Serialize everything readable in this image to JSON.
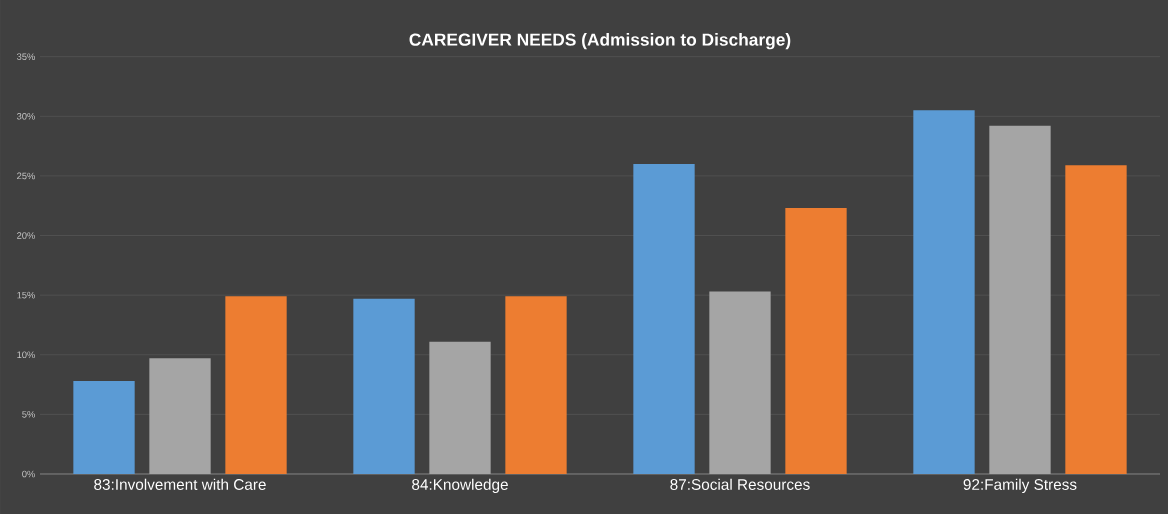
{
  "chart_data": {
    "type": "bar",
    "title": "CAREGIVER NEEDS (Admission to Discharge)",
    "categories": [
      "83:Involvement with Care",
      "84:Knowledge",
      "87:Social Resources",
      "92:Family Stress"
    ],
    "series": [
      {
        "color": "#5b9bd5",
        "values": [
          7.8,
          14.7,
          26.0,
          30.5
        ]
      },
      {
        "color": "#a5a5a5",
        "values": [
          9.7,
          11.1,
          15.3,
          29.2
        ]
      },
      {
        "color": "#ed7d31",
        "values": [
          14.9,
          14.9,
          22.3,
          25.9
        ]
      }
    ],
    "ylim": [
      0,
      35
    ],
    "yticks": [
      {
        "value": 0,
        "label": "0%"
      },
      {
        "value": 5,
        "label": "5%"
      },
      {
        "value": 10,
        "label": "10%"
      },
      {
        "value": 15,
        "label": "15%"
      },
      {
        "value": 20,
        "label": "20%"
      },
      {
        "value": 25,
        "label": "25%"
      },
      {
        "value": 30,
        "label": "30%"
      },
      {
        "value": 35,
        "label": "35%"
      }
    ],
    "grid": "y"
  }
}
